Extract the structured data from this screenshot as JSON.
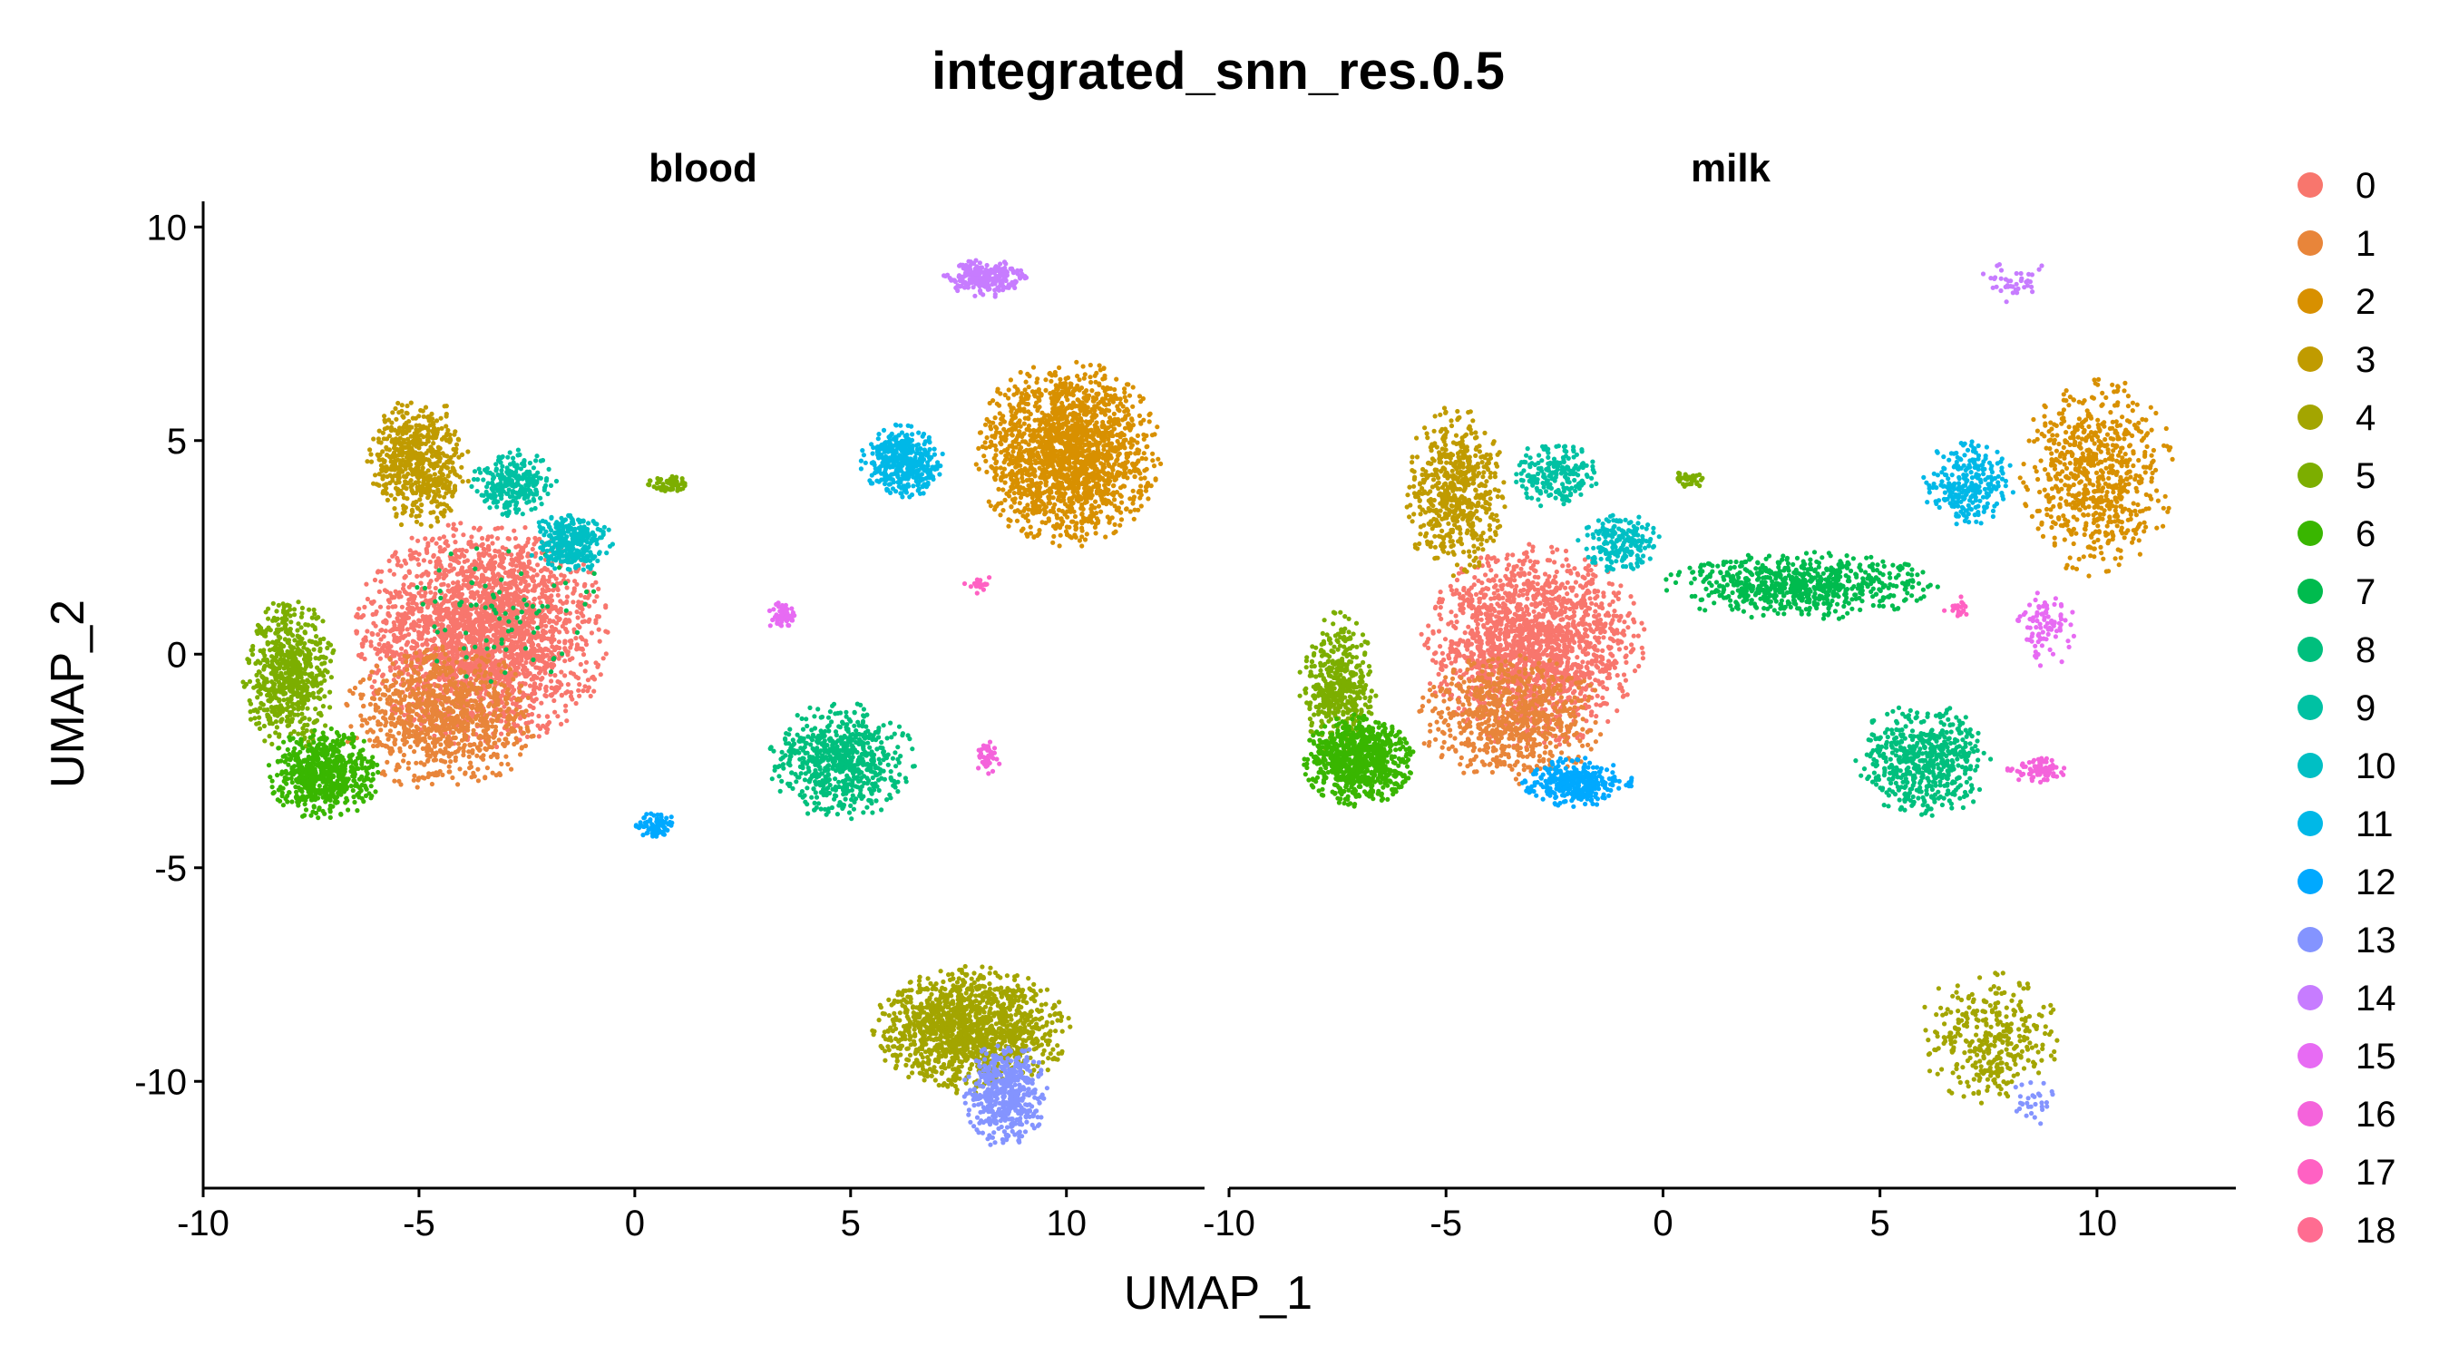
{
  "chart_data": {
    "type": "scatter",
    "title": "integrated_snn_res.0.5",
    "xlabel": "UMAP_1",
    "ylabel": "UMAP_2",
    "xlim": [
      -10,
      13.2
    ],
    "ylim": [
      -12.5,
      10.6
    ],
    "x_ticks": [
      -10,
      -5,
      0,
      5,
      10
    ],
    "x_tick_labels": [
      "-10",
      "-5",
      "0",
      "5",
      "10"
    ],
    "y_ticks": [
      10,
      5,
      0,
      -5,
      -10
    ],
    "y_tick_labels": [
      "10",
      "5",
      "0",
      "-5",
      "-10"
    ],
    "grid": false,
    "legend_position": "right",
    "panels": [
      {
        "label": "blood",
        "clusters": [
          {
            "id": "0",
            "cx": -3.5,
            "cy": 0.5,
            "rx": 3.0,
            "ry": 2.7,
            "n": 2600
          },
          {
            "id": "1",
            "cx": -4.5,
            "cy": -1.5,
            "rx": 2.3,
            "ry": 1.7,
            "n": 900
          },
          {
            "id": "2",
            "cx": 10.0,
            "cy": 4.7,
            "rx": 2.2,
            "ry": 2.2,
            "n": 1800
          },
          {
            "id": "3",
            "cx": -5.0,
            "cy": 4.5,
            "rx": 1.2,
            "ry": 1.6,
            "n": 600
          },
          {
            "id": "4",
            "cx": 7.8,
            "cy": -8.8,
            "rx": 2.3,
            "ry": 1.5,
            "n": 1400
          },
          {
            "id": "5",
            "cx": -8.0,
            "cy": -0.5,
            "rx": 1.1,
            "ry": 1.8,
            "n": 650
          },
          {
            "id": "5",
            "cx": 0.8,
            "cy": 4.0,
            "rx": 0.5,
            "ry": 0.2,
            "n": 60
          },
          {
            "id": "6",
            "cx": -7.2,
            "cy": -2.8,
            "rx": 1.3,
            "ry": 1.1,
            "n": 650
          },
          {
            "id": "7",
            "cx": -3.0,
            "cy": 1.0,
            "rx": 2.5,
            "ry": 2.0,
            "n": 80
          },
          {
            "id": "8",
            "cx": 4.8,
            "cy": -2.5,
            "rx": 1.7,
            "ry": 1.4,
            "n": 650
          },
          {
            "id": "9",
            "cx": -2.8,
            "cy": 4.0,
            "rx": 1.0,
            "ry": 0.8,
            "n": 260
          },
          {
            "id": "10",
            "cx": -1.5,
            "cy": 2.6,
            "rx": 1.0,
            "ry": 0.7,
            "n": 300
          },
          {
            "id": "11",
            "cx": 6.2,
            "cy": 4.5,
            "rx": 1.0,
            "ry": 0.9,
            "n": 420
          },
          {
            "id": "12",
            "cx": 0.5,
            "cy": -4.0,
            "rx": 0.5,
            "ry": 0.3,
            "n": 90
          },
          {
            "id": "13",
            "cx": 8.6,
            "cy": -10.3,
            "rx": 1.0,
            "ry": 1.3,
            "n": 500
          },
          {
            "id": "14",
            "cx": 8.1,
            "cy": 8.8,
            "rx": 1.0,
            "ry": 0.45,
            "n": 240
          },
          {
            "id": "15",
            "cx": 3.4,
            "cy": 0.9,
            "rx": 0.35,
            "ry": 0.35,
            "n": 60
          },
          {
            "id": "16",
            "cx": 8.2,
            "cy": -2.4,
            "rx": 0.3,
            "ry": 0.5,
            "n": 40
          },
          {
            "id": "17",
            "cx": 8.0,
            "cy": 1.6,
            "rx": 0.4,
            "ry": 0.3,
            "n": 20
          }
        ]
      },
      {
        "label": "milk",
        "clusters": [
          {
            "id": "0",
            "cx": -3.0,
            "cy": 0.2,
            "rx": 2.6,
            "ry": 2.4,
            "n": 1800
          },
          {
            "id": "1",
            "cx": -3.5,
            "cy": -1.5,
            "rx": 2.2,
            "ry": 1.6,
            "n": 700
          },
          {
            "id": "2",
            "cx": 10.0,
            "cy": 4.2,
            "rx": 1.8,
            "ry": 2.4,
            "n": 700
          },
          {
            "id": "3",
            "cx": -4.8,
            "cy": 3.8,
            "rx": 1.2,
            "ry": 2.0,
            "n": 600
          },
          {
            "id": "4",
            "cx": 7.5,
            "cy": -9.0,
            "rx": 1.7,
            "ry": 1.6,
            "n": 350
          },
          {
            "id": "5",
            "cx": -7.5,
            "cy": -0.8,
            "rx": 0.9,
            "ry": 1.8,
            "n": 450
          },
          {
            "id": "5",
            "cx": 0.6,
            "cy": 4.1,
            "rx": 0.4,
            "ry": 0.2,
            "n": 40
          },
          {
            "id": "6",
            "cx": -7.0,
            "cy": -2.5,
            "rx": 1.3,
            "ry": 1.1,
            "n": 800
          },
          {
            "id": "7",
            "cx": 3.2,
            "cy": 1.6,
            "rx": 3.2,
            "ry": 0.8,
            "n": 700
          },
          {
            "id": "8",
            "cx": 6.0,
            "cy": -2.5,
            "rx": 1.6,
            "ry": 1.4,
            "n": 550
          },
          {
            "id": "9",
            "cx": -2.5,
            "cy": 4.2,
            "rx": 1.0,
            "ry": 0.8,
            "n": 200
          },
          {
            "id": "10",
            "cx": -1.0,
            "cy": 2.6,
            "rx": 1.0,
            "ry": 0.7,
            "n": 200
          },
          {
            "id": "11",
            "cx": 7.0,
            "cy": 4.0,
            "rx": 1.1,
            "ry": 1.0,
            "n": 260
          },
          {
            "id": "12",
            "cx": -2.0,
            "cy": -3.0,
            "rx": 1.3,
            "ry": 0.6,
            "n": 320
          },
          {
            "id": "13",
            "cx": 8.5,
            "cy": -10.5,
            "rx": 0.6,
            "ry": 0.6,
            "n": 30
          },
          {
            "id": "14",
            "cx": 8.2,
            "cy": 8.7,
            "rx": 0.9,
            "ry": 0.5,
            "n": 40
          },
          {
            "id": "15",
            "cx": 8.8,
            "cy": 0.6,
            "rx": 0.7,
            "ry": 1.0,
            "n": 90
          },
          {
            "id": "16",
            "cx": 8.6,
            "cy": -2.7,
            "rx": 0.7,
            "ry": 0.3,
            "n": 80
          },
          {
            "id": "17",
            "cx": 6.8,
            "cy": 1.1,
            "rx": 0.4,
            "ry": 0.3,
            "n": 20
          }
        ]
      }
    ],
    "legend": [
      {
        "label": "0",
        "color": "#F8766D"
      },
      {
        "label": "1",
        "color": "#E8853A"
      },
      {
        "label": "2",
        "color": "#D89000"
      },
      {
        "label": "3",
        "color": "#C09B00"
      },
      {
        "label": "4",
        "color": "#A3A500"
      },
      {
        "label": "5",
        "color": "#7CAE00"
      },
      {
        "label": "6",
        "color": "#39B600"
      },
      {
        "label": "7",
        "color": "#00BB4E"
      },
      {
        "label": "8",
        "color": "#00BF7D"
      },
      {
        "label": "9",
        "color": "#00C1A3"
      },
      {
        "label": "10",
        "color": "#00BFC4"
      },
      {
        "label": "11",
        "color": "#00B8E7"
      },
      {
        "label": "12",
        "color": "#00A9FF"
      },
      {
        "label": "13",
        "color": "#8494FF"
      },
      {
        "label": "14",
        "color": "#C77CFF"
      },
      {
        "label": "15",
        "color": "#E76BF3"
      },
      {
        "label": "16",
        "color": "#F463DB"
      },
      {
        "label": "17",
        "color": "#FF61C3"
      },
      {
        "label": "18",
        "color": "#FF6C91"
      }
    ]
  }
}
